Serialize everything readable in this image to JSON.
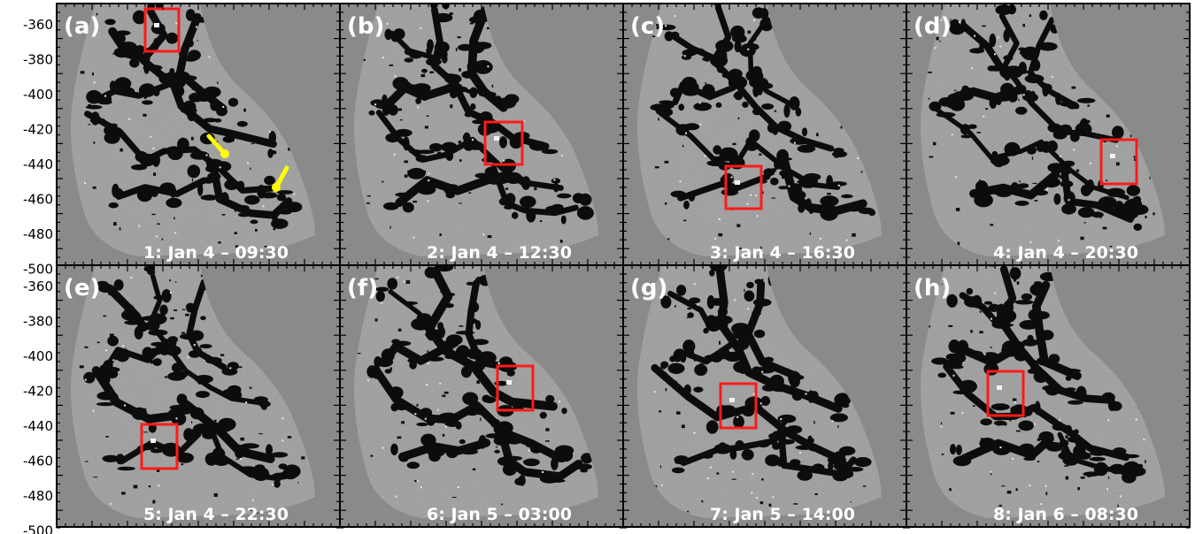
{
  "colors": {
    "background": "#8a8a8a",
    "region": "#9a9a9a",
    "network": "#0c0c0c",
    "highlight_box": "#ff1a1a",
    "arrow": "#ffff00",
    "text": "#ffffff",
    "frame": "#000000"
  },
  "y_axis": {
    "ticks": [
      "-360",
      "-380",
      "-400",
      "-420",
      "-440",
      "-460",
      "-480",
      "-500"
    ]
  },
  "panels": [
    {
      "letter": "(a)",
      "caption": "1: Jan 4 – 09:30",
      "arrows": true
    },
    {
      "letter": "(b)",
      "caption": "2: Jan 4 – 12:30",
      "arrows": false
    },
    {
      "letter": "(c)",
      "caption": "3: Jan 4 – 16:30",
      "arrows": false
    },
    {
      "letter": "(d)",
      "caption": "4: Jan 4 – 20:30",
      "arrows": false
    },
    {
      "letter": "(e)",
      "caption": "5: Jan 4 – 22:30",
      "arrows": false
    },
    {
      "letter": "(f)",
      "caption": "6: Jan 5 – 03:00",
      "arrows": false
    },
    {
      "letter": "(g)",
      "caption": "7: Jan 5 – 14:00",
      "arrows": false
    },
    {
      "letter": "(h)",
      "caption": "8: Jan 6 – 08:30",
      "arrows": false
    }
  ]
}
